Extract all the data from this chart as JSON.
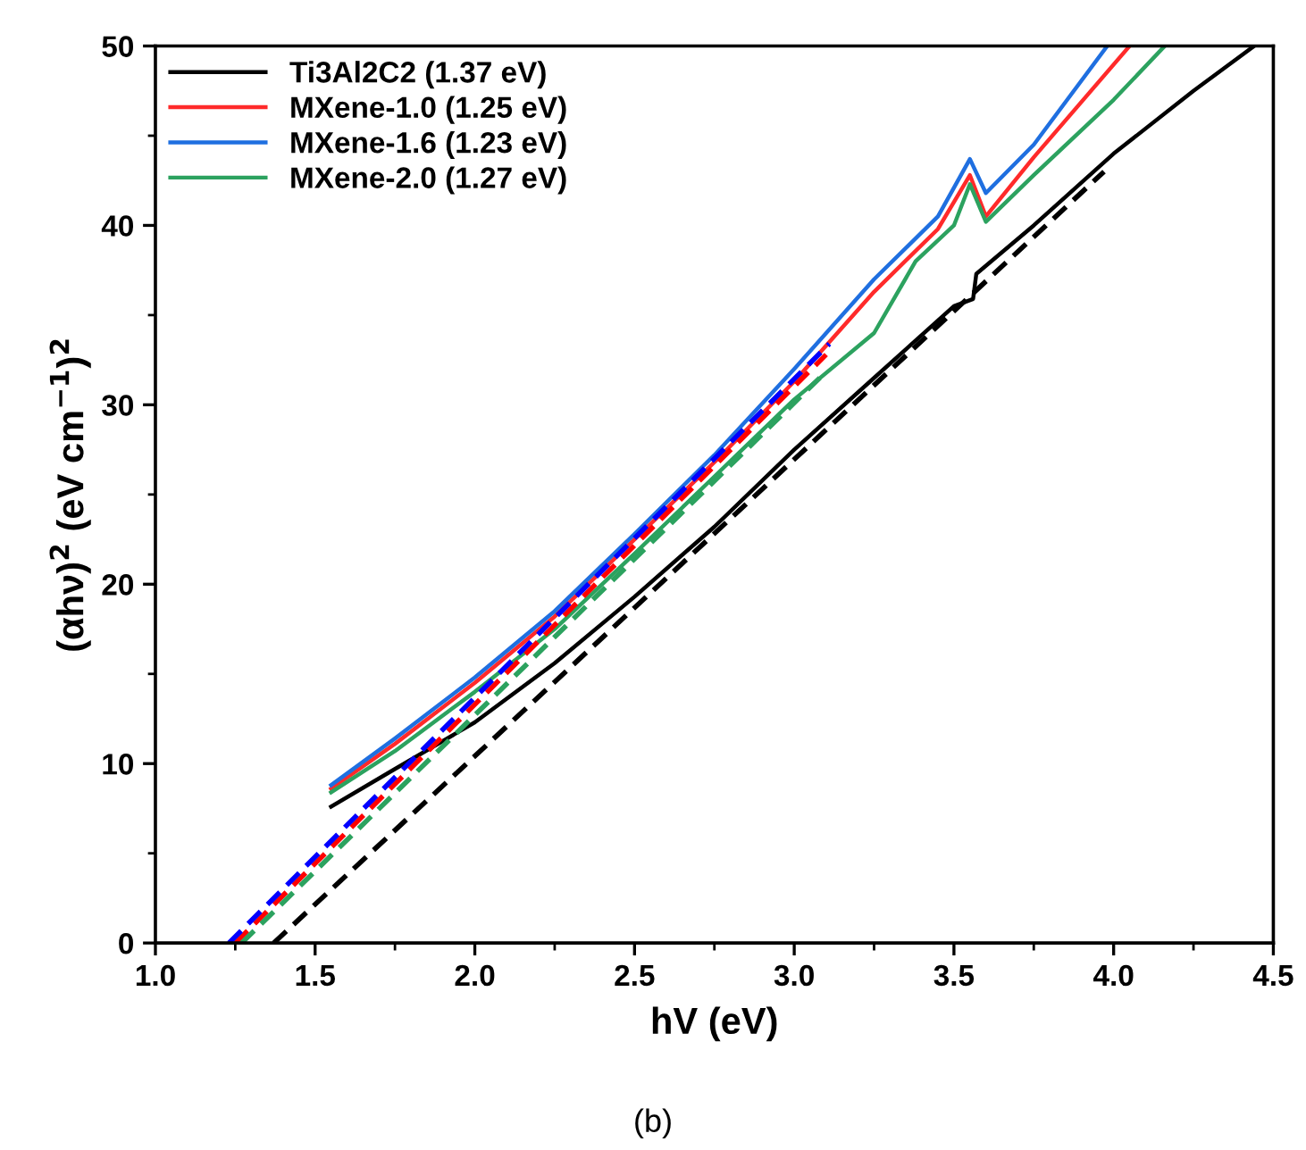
{
  "chart_data": {
    "type": "line",
    "xlabel": "hV (eV)",
    "ylabel": "(αhν)$^{2}$ (eV cm$^{−1}$)$^{2}$",
    "annotations": [
      "(b)"
    ],
    "xlim": [
      1.0,
      4.5
    ],
    "ylim": [
      0,
      50
    ],
    "xticks": [
      {
        "value": 1,
        "label": "1.0"
      },
      1.5,
      {
        "value": 2,
        "label": "2.0"
      },
      2.5,
      {
        "value": 3,
        "label": "3.0"
      },
      3.5,
      {
        "value": 4,
        "label": "4.0"
      },
      4.5
    ],
    "yticks": [
      0,
      10,
      20,
      30,
      40,
      50
    ],
    "grid": false,
    "legend": "top left",
    "marker": "none",
    "series": [
      {
        "name": "Ti3Al2C2 (1.37 eV)",
        "color": "#000000",
        "line_style": "solid",
        "x": [
          1.55,
          1.75,
          2.0,
          2.25,
          2.5,
          2.75,
          3.0,
          3.25,
          3.5,
          3.56,
          3.57,
          3.75,
          4.0,
          4.25,
          4.44
        ],
        "values": [
          7.6,
          9.7,
          12.3,
          15.6,
          19.3,
          23.2,
          27.5,
          31.5,
          35.5,
          35.9,
          37.3,
          40.0,
          44.0,
          47.5,
          50.0
        ]
      },
      {
        "name": "MXene-1.0 (1.25 eV)",
        "color": "#ff2a2a",
        "line_style": "solid",
        "x": [
          1.55,
          1.75,
          2.0,
          2.25,
          2.5,
          2.75,
          3.0,
          3.25,
          3.45,
          3.55,
          3.6,
          3.75,
          4.05
        ],
        "values": [
          8.6,
          11.1,
          14.5,
          18.2,
          22.5,
          26.8,
          31.3,
          36.3,
          39.8,
          42.8,
          40.5,
          43.8,
          50.0
        ]
      },
      {
        "name": "MXene-1.6 (1.23 eV)",
        "color": "#1f6fe0",
        "line_style": "solid",
        "x": [
          1.55,
          1.75,
          2.0,
          2.25,
          2.5,
          2.75,
          3.0,
          3.25,
          3.45,
          3.55,
          3.6,
          3.75,
          3.98
        ],
        "values": [
          8.8,
          11.4,
          14.8,
          18.5,
          22.8,
          27.2,
          32.0,
          37.0,
          40.5,
          43.7,
          41.8,
          44.5,
          50.0
        ]
      },
      {
        "name": "MXene-2.0 (1.27 eV)",
        "color": "#2ca25f",
        "line_style": "solid",
        "x": [
          1.55,
          1.75,
          2.0,
          2.25,
          2.5,
          2.75,
          3.0,
          3.25,
          3.38,
          3.5,
          3.55,
          3.6,
          3.75,
          4.0,
          4.16
        ],
        "values": [
          8.4,
          10.7,
          14.0,
          17.5,
          21.7,
          26.0,
          30.3,
          34.0,
          38.0,
          40.0,
          42.3,
          40.2,
          42.8,
          47.0,
          50.0
        ]
      },
      {
        "color": "#000000",
        "line_style": "dashed",
        "x": [
          1.37,
          3.97
        ],
        "values": [
          0,
          43.0
        ]
      },
      {
        "color": "#ff0000",
        "line_style": "dashed",
        "x": [
          1.25,
          3.1
        ],
        "values": [
          0,
          32.8
        ]
      },
      {
        "color": "#0000ff",
        "line_style": "dashed",
        "x": [
          1.23,
          3.11
        ],
        "values": [
          0,
          33.4
        ]
      },
      {
        "color": "#2ca25f",
        "line_style": "dashed",
        "x": [
          1.27,
          3.08
        ],
        "values": [
          0,
          31.5
        ]
      }
    ]
  }
}
